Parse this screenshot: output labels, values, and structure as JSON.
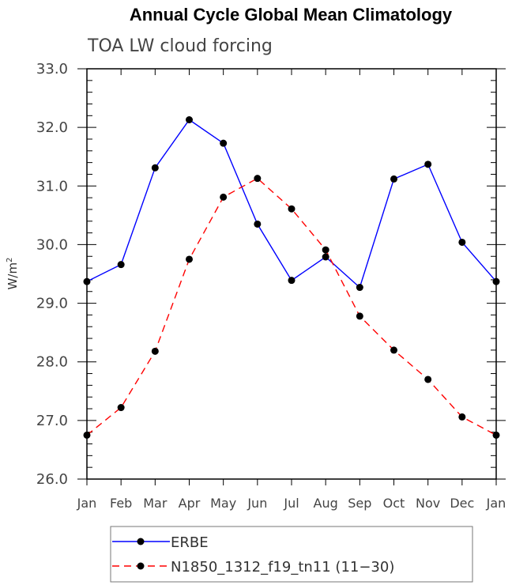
{
  "chart_data": {
    "type": "line",
    "title": "Annual Cycle Global Mean Climatology",
    "subtitle": "TOA LW cloud forcing",
    "ylabel": "W/m",
    "ylabel_sup": "2",
    "ylim": [
      26.0,
      33.0
    ],
    "yticks": [
      "26.0",
      "27.0",
      "28.0",
      "29.0",
      "30.0",
      "31.0",
      "32.0",
      "33.0"
    ],
    "categories": [
      "Jan",
      "Feb",
      "Mar",
      "Apr",
      "May",
      "Jun",
      "Jul",
      "Aug",
      "Sep",
      "Oct",
      "Nov",
      "Dec",
      "Jan"
    ],
    "series": [
      {
        "name": "ERBE",
        "color": "#0000ff",
        "dash": "solid",
        "values": [
          29.37,
          29.66,
          31.31,
          32.13,
          31.73,
          30.35,
          29.39,
          29.79,
          29.27,
          31.12,
          31.37,
          30.04,
          29.37
        ]
      },
      {
        "name": "N1850_1312_f19_tn11 (11−30)",
        "color": "#ff0000",
        "dash": "dashed",
        "values": [
          26.75,
          27.22,
          28.18,
          29.75,
          30.81,
          31.13,
          30.61,
          29.91,
          28.78,
          28.2,
          27.7,
          27.06,
          26.75
        ]
      }
    ],
    "legend_position": "bottom"
  }
}
